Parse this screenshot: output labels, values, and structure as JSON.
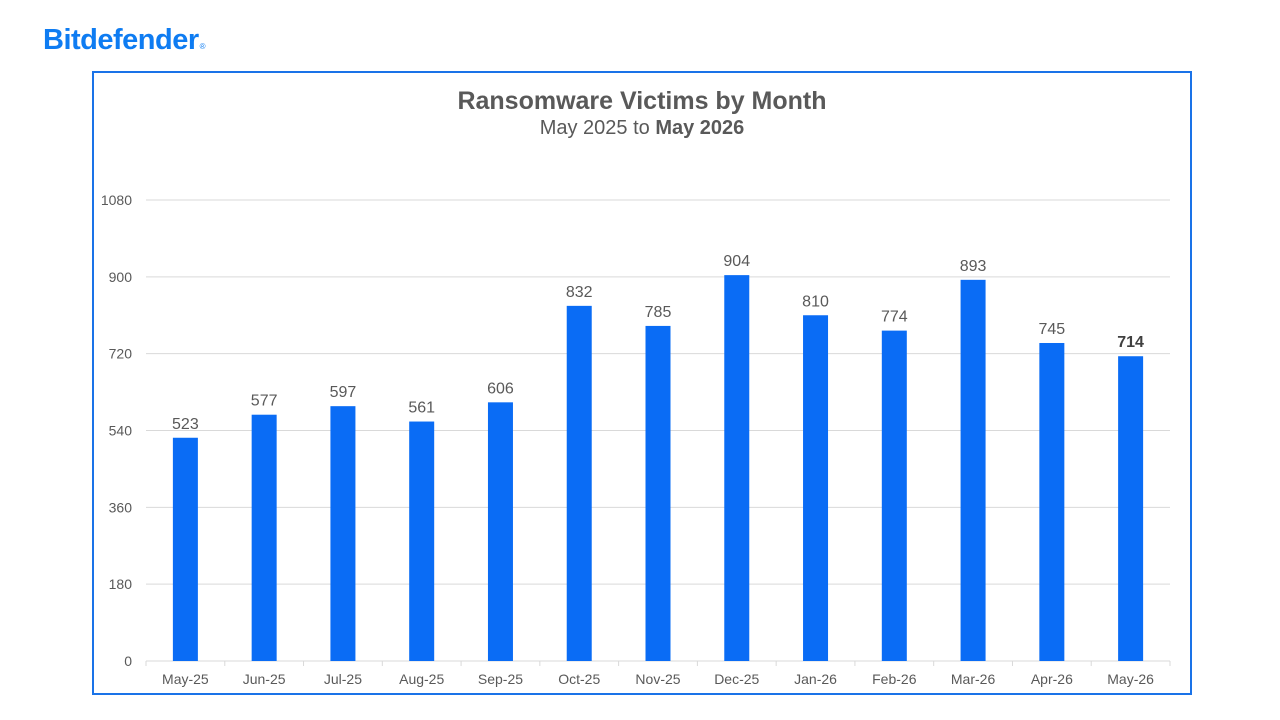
{
  "brand": {
    "logo_text": "Bitdefender",
    "logo_mark": "®",
    "color": "#0e7cf2"
  },
  "chart_data": {
    "type": "bar",
    "title": "Ransomware Victims by Month",
    "subtitle_prefix": "May 2025 to ",
    "subtitle_bold": "May 2026",
    "xlabel": "",
    "ylabel": "",
    "categories": [
      "May-25",
      "Jun-25",
      "Jul-25",
      "Aug-25",
      "Sep-25",
      "Oct-25",
      "Nov-25",
      "Dec-25",
      "Jan-26",
      "Feb-26",
      "Mar-26",
      "Apr-26",
      "May-26"
    ],
    "values": [
      523,
      577,
      597,
      561,
      606,
      832,
      785,
      904,
      810,
      774,
      893,
      745,
      714
    ],
    "bold_labels": [
      "May-26"
    ],
    "ylim": [
      0,
      1080
    ],
    "yticks": [
      0,
      180,
      360,
      540,
      720,
      900,
      1080
    ],
    "grid": true,
    "legend": "none",
    "bar_color": "#0a6cf5",
    "grid_color": "#d9d9d9",
    "text_color": "#595959"
  }
}
